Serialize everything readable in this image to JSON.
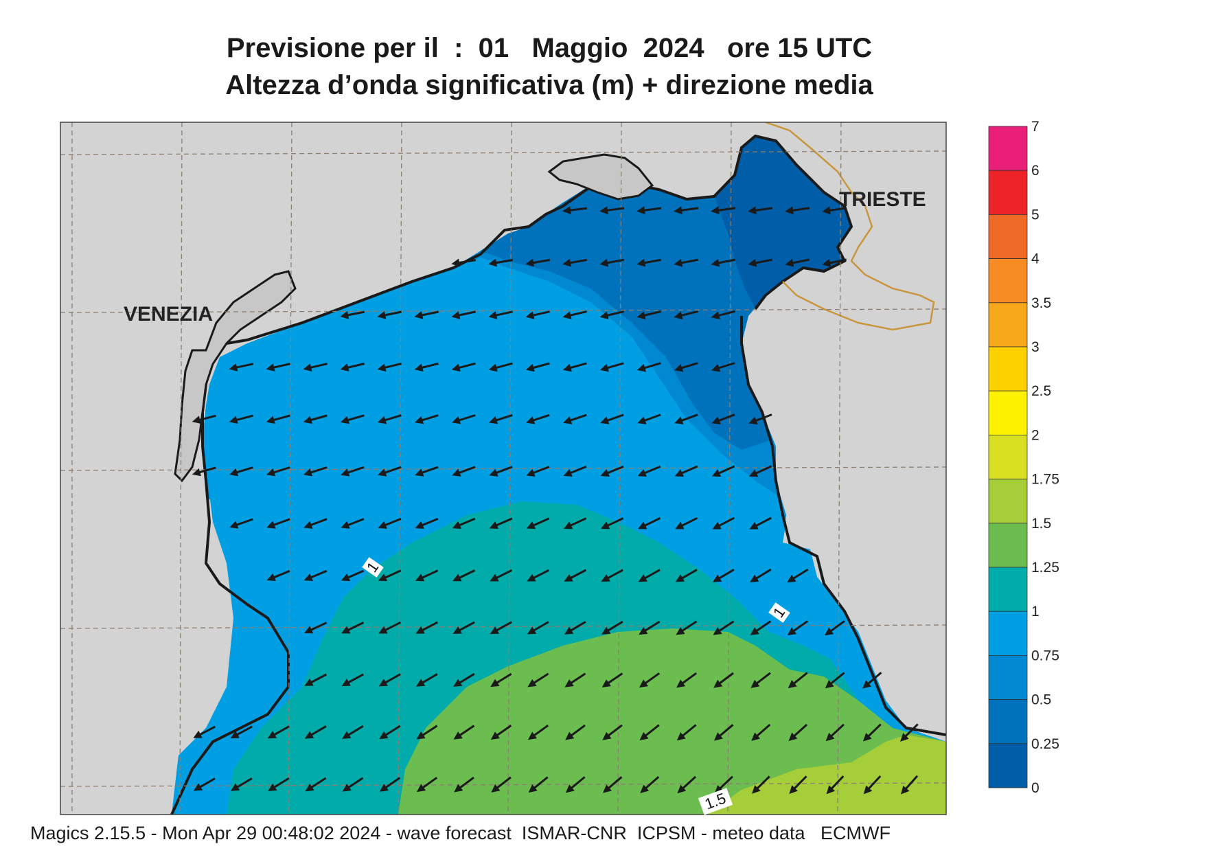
{
  "title": {
    "line1": "Previsione per il  :  01   Maggio  2024   ore 15 UTC",
    "line2": "Altezza d’onda significativa (m) + direzione media"
  },
  "map": {
    "labels": {
      "venezia": "VENEZIA",
      "trieste": "TRIESTE"
    },
    "contour_labels": [
      "1",
      "1",
      "1.5"
    ],
    "colors": {
      "land": "#d3d3d4",
      "coast": "#1a1a1a",
      "border": "#c8963c",
      "grid": "#8a7f70"
    },
    "wave_direction": "arrows point toward the north-west (waves travelling from south-east)"
  },
  "colorbar": {
    "levels": [
      "7",
      "6",
      "5",
      "4",
      "3.5",
      "3",
      "2.5",
      "2",
      "1.75",
      "1.5",
      "1.25",
      "1",
      "0.75",
      "0.5",
      "0.25",
      "0"
    ],
    "colors": [
      "#ea1f7a",
      "#ec2327",
      "#f06a27",
      "#f58b22",
      "#f7a81b",
      "#fdd000",
      "#fff200",
      "#d9e021",
      "#a6ce39",
      "#6cbd4f",
      "#00aba9",
      "#009fe3",
      "#0089d1",
      "#0072bc",
      "#005ea8"
    ]
  },
  "footer": "Magics 2.15.5 - Mon Apr 29 00:48:02 2024 - wave forecast  ISMAR-CNR  ICPSM - meteo data   ECMWF"
}
